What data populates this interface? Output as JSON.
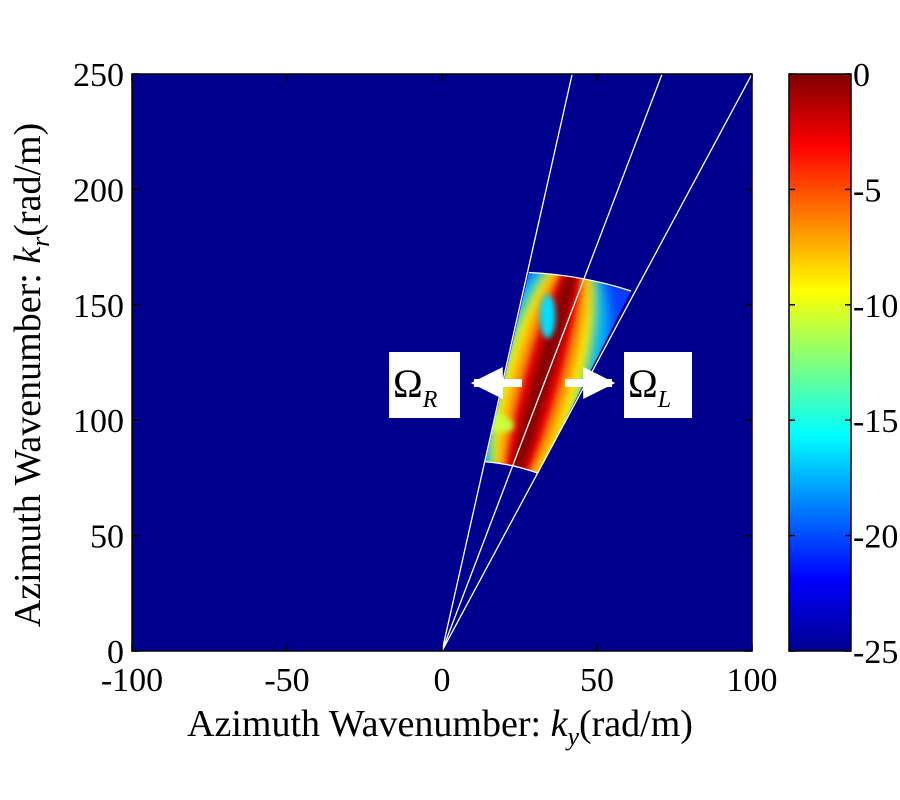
{
  "chart_data": {
    "type": "heatmap",
    "xlabel": {
      "prefix": "Azimuth Wavenumber: ",
      "symbol": "k",
      "subscript": "y",
      "unit": "(rad/m)"
    },
    "ylabel": {
      "prefix": "Azimuth Wavenumber: ",
      "symbol": "k",
      "subscript": "r",
      "unit": "(rad/m)"
    },
    "xlim": [
      -100,
      100
    ],
    "ylim": [
      0,
      250
    ],
    "xticks": [
      -100,
      -50,
      0,
      50,
      100
    ],
    "yticks": [
      0,
      50,
      100,
      150,
      200,
      250
    ],
    "colorbar": {
      "range": [
        -25,
        0
      ],
      "ticks": [
        0,
        -5,
        -10,
        -15,
        -20,
        -25
      ],
      "colormap": "jet"
    },
    "background_value": -25,
    "sector": {
      "origin": [
        0,
        0
      ],
      "ray_angles_deg": [
        73,
        63,
        55.6
      ],
      "inner_arc": [
        [
          14,
          82
        ],
        [
          31,
          77
        ]
      ],
      "outer_arc": [
        [
          28,
          164
        ],
        [
          61,
          156
        ]
      ],
      "extended_rays": [
        [
          42,
          250
        ],
        [
          71,
          250
        ],
        [
          100,
          250
        ]
      ]
    },
    "ridge": {
      "center_line": [
        [
          24,
          78
        ],
        [
          41,
          160
        ]
      ],
      "peak_value": 0
    },
    "annotations": [
      {
        "symbol": "Ω",
        "subscript": "R",
        "direction": "left"
      },
      {
        "symbol": "Ω",
        "subscript": "L",
        "direction": "right"
      }
    ],
    "grid": false
  }
}
